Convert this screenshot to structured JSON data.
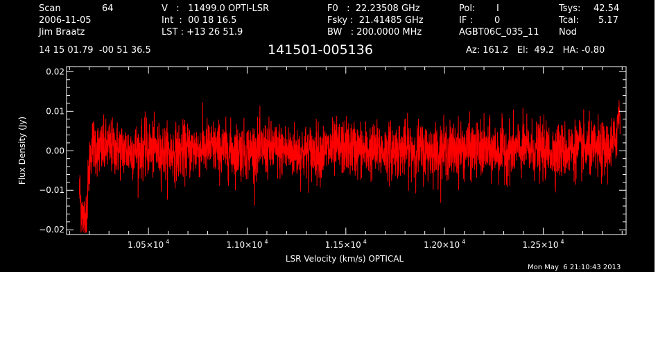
{
  "header": {
    "scan_label": "Scan",
    "scan_value": "64",
    "date": "2006-11-05",
    "observer": "Jim Braatz",
    "v_line": "V   :   11499.0 OPTI-LSR",
    "int_line": "Int  :  00 18 16.5",
    "lst_line": "LST : +13 26 51.9",
    "f0_line": "F0   :  22.23508 GHz",
    "fsky_line": "Fsky :  21.41485 GHz",
    "bw_line": "BW   : 200.0000 MHz",
    "pol_label": "Pol:",
    "pol_value": "I",
    "if_label": "IF :",
    "if_value": "0",
    "project": "AGBT06C_035_11",
    "tsys_label": "Tsys:",
    "tsys_value": "42.54",
    "tcal_label": "Tcal:",
    "tcal_value": "5.17",
    "procedure": "Nod",
    "coords": "14 15 01.79  -00 51 36.5",
    "source_title": "141501-005136",
    "az_el_ha": "Az: 161.2   El:  49.2   HA: -0.80"
  },
  "footer": {
    "timestamp": "Mon May  6 21:10:43 2013"
  },
  "chart_data": {
    "type": "line",
    "title": "141501-005136",
    "xlabel": "LSR Velocity (km/s) OPTICAL",
    "ylabel": "Flux Density (Jy)",
    "xlim": [
      10085,
      12920
    ],
    "ylim": [
      -0.0212,
      0.0213
    ],
    "x_ticks": [
      {
        "value": 10500,
        "mantissa": "1.05",
        "exponent": "4"
      },
      {
        "value": 11000,
        "mantissa": "1.10",
        "exponent": "4"
      },
      {
        "value": 11500,
        "mantissa": "1.15",
        "exponent": "4"
      },
      {
        "value": 12000,
        "mantissa": "1.20",
        "exponent": "4"
      },
      {
        "value": 12500,
        "mantissa": "1.25",
        "exponent": "4"
      }
    ],
    "x_times_symbol": "×10",
    "y_ticks": [
      {
        "value": 0.02,
        "label": "0.02"
      },
      {
        "value": 0.01,
        "label": "0.01"
      },
      {
        "value": 0.0,
        "label": "0.00"
      },
      {
        "value": -0.01,
        "label": "−0.01"
      },
      {
        "value": -0.02,
        "label": "−0.02"
      }
    ],
    "series": [
      {
        "color": "#ff0000",
        "x": [
          10150,
          10160,
          10170,
          10180,
          10190,
          10200,
          10210,
          10220,
          10250,
          10300,
          10400,
          10500,
          10600,
          10700,
          10800,
          10900,
          11000,
          11100,
          11200,
          11300,
          11400,
          11500,
          11600,
          11700,
          11800,
          11900,
          12000,
          12100,
          12200,
          12300,
          12400,
          12500,
          12600,
          12700,
          12800,
          12850,
          12870,
          12880,
          12890
        ],
        "y": [
          -0.01,
          -0.014,
          -0.017,
          -0.018,
          -0.012,
          -0.004,
          0.001,
          0.002,
          0.0,
          0.001,
          0.0,
          0.0005,
          -0.0005,
          0.0,
          0.001,
          0.0,
          0.0,
          0.0005,
          0.0,
          -0.0005,
          0.0,
          0.001,
          0.0,
          0.0,
          0.0005,
          0.0,
          0.0,
          0.0005,
          0.0,
          0.0,
          0.0005,
          0.0,
          0.0,
          0.0005,
          0.0,
          0.001,
          0.004,
          0.008,
          0.012
        ],
        "noise_rms": 0.0035
      }
    ],
    "grid": false,
    "legend": "none"
  }
}
